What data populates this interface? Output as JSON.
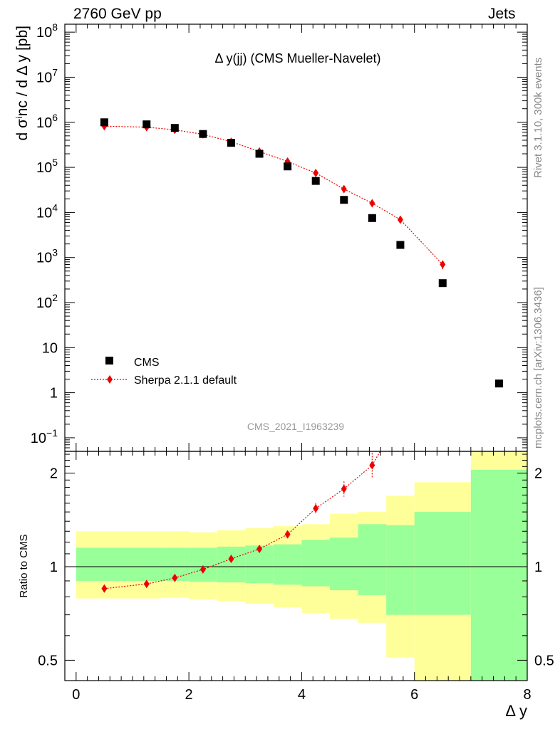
{
  "header": {
    "left": "2760 GeV pp",
    "right": "Jets"
  },
  "side_labels": {
    "rivet": "Rivet 3.1.10,  300k events",
    "mcplots": "mcplots.cern.ch [arXiv:1306.3436]"
  },
  "watermark": "CMS_2021_I1963239",
  "colors": {
    "data": "#000000",
    "mc": "#ee0000",
    "band_inner": "#99ff99",
    "band_outer": "#ffff99"
  },
  "chart_data": [
    {
      "type": "scatter",
      "title": "Δ y(jj) (CMS Mueller-Navelet)",
      "xlabel": "",
      "ylabel": "d σⁱnc / d Δ y [pb]",
      "yscale": "log",
      "ylim": [
        0.05,
        150000000
      ],
      "xlim": [
        -0.2,
        8.0
      ],
      "yticks": [
        {
          "v": 0.1,
          "base": "10",
          "exp": "−1"
        },
        {
          "v": 1,
          "base": "1",
          "exp": ""
        },
        {
          "v": 10,
          "base": "10",
          "exp": ""
        },
        {
          "v": 100,
          "base": "10",
          "exp": "2"
        },
        {
          "v": 1000,
          "base": "10",
          "exp": "3"
        },
        {
          "v": 10000,
          "base": "10",
          "exp": "4"
        },
        {
          "v": 100000,
          "base": "10",
          "exp": "5"
        },
        {
          "v": 1000000,
          "base": "10",
          "exp": "6"
        },
        {
          "v": 10000000,
          "base": "10",
          "exp": "7"
        },
        {
          "v": 100000000,
          "base": "10",
          "exp": "8"
        }
      ],
      "legend": {
        "position": "bottom-left",
        "entries": [
          "CMS",
          "Sherpa 2.1.1 default"
        ]
      },
      "series": [
        {
          "name": "CMS",
          "marker": "square",
          "x": [
            0.5,
            1.25,
            1.75,
            2.25,
            2.75,
            3.25,
            3.75,
            4.25,
            4.75,
            5.25,
            5.75,
            6.5,
            7.5
          ],
          "y": [
            1000000,
            900000,
            750000,
            550000,
            350000,
            200000,
            105000,
            50000,
            19000,
            7500,
            1900,
            270,
            1.6
          ]
        },
        {
          "name": "Sherpa 2.1.1 default",
          "marker": "diamond",
          "x": [
            0.5,
            1.25,
            1.75,
            2.25,
            2.75,
            3.25,
            3.75,
            4.25,
            4.75,
            5.25,
            5.75,
            6.5
          ],
          "y": [
            820000,
            780000,
            680000,
            540000,
            370000,
            225000,
            135000,
            75000,
            33000,
            16000,
            6900,
            700
          ],
          "yerr": [
            0,
            0,
            0,
            0,
            0,
            0,
            0,
            0,
            0,
            0,
            0,
            150
          ]
        }
      ]
    },
    {
      "type": "scatter",
      "title": "",
      "xlabel": "Δ y",
      "ylabel": "Ratio to CMS",
      "yscale": "log",
      "ylim": [
        0.43,
        2.35
      ],
      "xlim": [
        -0.2,
        8.0
      ],
      "xticks": [
        0,
        2,
        4,
        6,
        8
      ],
      "yticks": [
        0.5,
        1,
        2
      ],
      "bins": [
        0,
        1,
        1.5,
        2,
        2.5,
        3,
        3.5,
        4,
        4.5,
        5,
        5.5,
        6,
        7,
        8
      ],
      "band_inner": {
        "lo": [
          0.9,
          0.9,
          0.9,
          0.895,
          0.89,
          0.885,
          0.875,
          0.865,
          0.84,
          0.81,
          0.7,
          0.7,
          0.4
        ],
        "hi": [
          1.15,
          1.15,
          1.15,
          1.15,
          1.16,
          1.17,
          1.18,
          1.22,
          1.24,
          1.37,
          1.36,
          1.5,
          2.05
        ]
      },
      "band_outer": {
        "lo": [
          0.79,
          0.79,
          0.795,
          0.785,
          0.775,
          0.76,
          0.74,
          0.71,
          0.68,
          0.66,
          0.51,
          0.4,
          0.4
        ],
        "hi": [
          1.3,
          1.3,
          1.3,
          1.29,
          1.31,
          1.33,
          1.35,
          1.37,
          1.48,
          1.5,
          1.69,
          1.87,
          2.6
        ]
      },
      "series": [
        {
          "name": "Sherpa 2.1.1 default",
          "x": [
            0.5,
            1.25,
            1.75,
            2.25,
            2.75,
            3.25,
            3.75,
            4.25,
            4.75,
            5.25
          ],
          "y": [
            0.85,
            0.88,
            0.92,
            0.98,
            1.06,
            1.14,
            1.27,
            1.54,
            1.78,
            2.12
          ],
          "yerr": [
            0,
            0,
            0,
            0,
            0,
            0,
            0.03,
            0.06,
            0.1,
            0.2
          ]
        }
      ]
    }
  ]
}
